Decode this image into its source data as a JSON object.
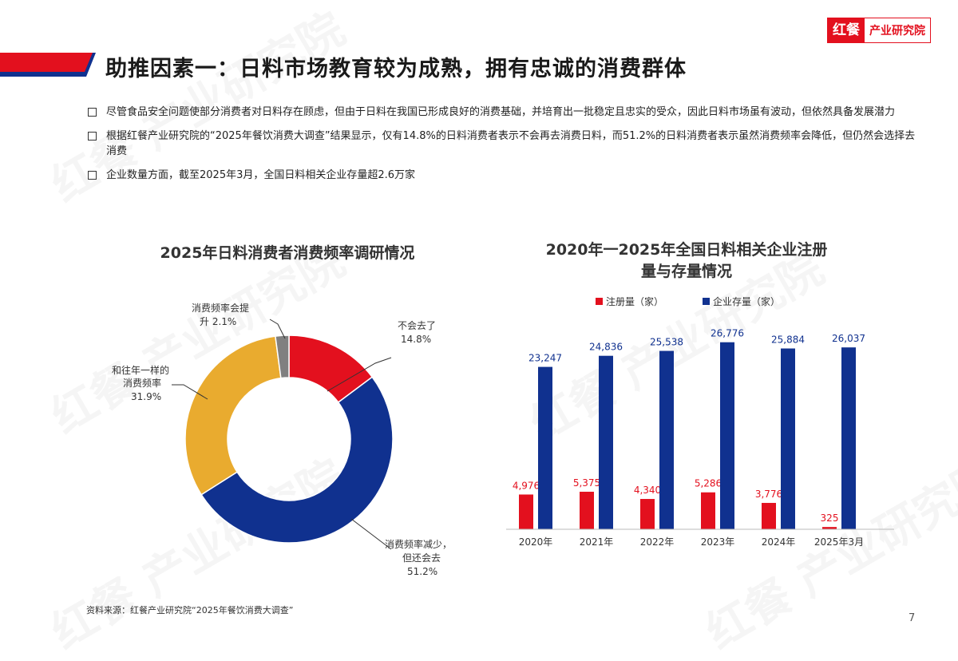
{
  "logo": {
    "mark": "红餐",
    "text": "产业研究院"
  },
  "watermark": "红餐 产业研究院",
  "colors": {
    "red": "#e3101e",
    "navy": "#10318f",
    "orange": "#e9ab2f",
    "gray": "#808080"
  },
  "page_title": "助推因素一：日料市场教育较为成熟，拥有忠诚的消费群体",
  "bullets": [
    "尽管食品安全问题使部分消费者对日料存在顾虑，但由于日料在我国已形成良好的消费基础，并培育出一批稳定且忠实的受众，因此日料市场虽有波动，但依然具备发展潜力",
    "根据红餐产业研究院的“2025年餐饮消费大调查”结果显示，仅有14.8%的日料消费者表示不会再去消费日料，而51.2%的日料消费者表示虽然消费频率会降低，但仍然会选择去消费",
    "企业数量方面，截至2025年3月，全国日料相关企业存量超2.6万家"
  ],
  "chart_data": [
    {
      "type": "pie",
      "title": "2025年日料消费者消费频率调研情况",
      "slices": [
        {
          "label": "不会去了",
          "value": 14.8,
          "label_text": "14.8%",
          "color": "#e3101e"
        },
        {
          "label": "消费频率减少，但还会去",
          "value": 51.2,
          "label_text": "51.2%",
          "color": "#10318f"
        },
        {
          "label": "和往年一样的消费频率",
          "value": 31.9,
          "label_text": "31.9%",
          "color": "#e9ab2f"
        },
        {
          "label": "消费频率会提升",
          "value": 2.1,
          "label_text": "2.1%",
          "color": "#808080"
        }
      ]
    },
    {
      "type": "bar",
      "title": "2020年一2025年全国日料相关企业注册量与存量情况",
      "categories": [
        "2020年",
        "2021年",
        "2022年",
        "2023年",
        "2024年",
        "2025年3月"
      ],
      "series": [
        {
          "name": "注册量（家）",
          "color": "#e3101e",
          "values": [
            4976,
            5375,
            4340,
            5286,
            3776,
            325
          ],
          "labels": [
            "4,976",
            "5,375",
            "4,340",
            "5,286",
            "3,776",
            "325"
          ]
        },
        {
          "name": "企业存量（家）",
          "color": "#10318f",
          "values": [
            23247,
            24836,
            25538,
            26776,
            25884,
            26037
          ],
          "labels": [
            "23,247",
            "24,836",
            "25,538",
            "26,776",
            "25,884",
            "26,037"
          ]
        }
      ]
    }
  ],
  "pie_labels": {
    "no_more": [
      "不会去了",
      "14.8%"
    ],
    "less": [
      "消费频率减少，",
      "但还会去",
      "51.2%"
    ],
    "same": [
      "和往年一样的",
      "消费频率",
      "31.9%"
    ],
    "more": [
      "消费频率会提",
      "升 2.1%"
    ]
  },
  "bar_title_lines": [
    "2020年一2025年全国日料相关企业注册",
    "量与存量情况"
  ],
  "source": "资料来源：红餐产业研究院“2025年餐饮消费大调查”",
  "page_number": "7"
}
